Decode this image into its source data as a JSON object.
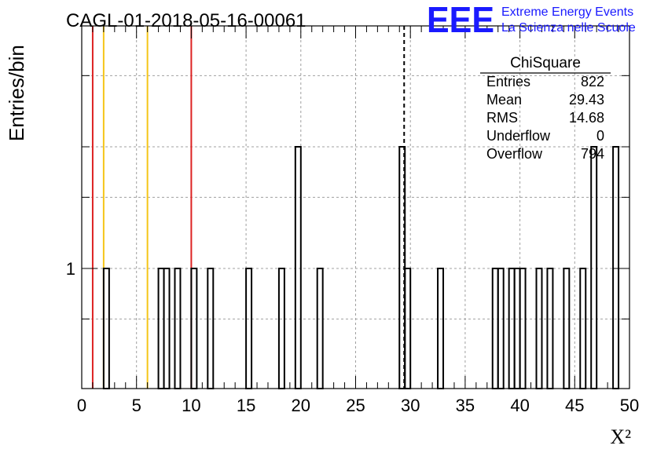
{
  "chart_data": {
    "type": "bar",
    "title": "CAGL-01-2018-05-16-00061",
    "xlabel": "X²",
    "ylabel": "Entries/bin",
    "xlim": [
      0,
      50
    ],
    "y_scale": "log",
    "y_visible_tick_label": "1",
    "grid": true,
    "x_ticks": [
      "0",
      "5",
      "10",
      "15",
      "20",
      "25",
      "30",
      "35",
      "40",
      "45",
      "50"
    ],
    "bin_width": 0.5,
    "bins": [
      {
        "x": 2.0,
        "count": 1
      },
      {
        "x": 7.0,
        "count": 1
      },
      {
        "x": 7.5,
        "count": 1
      },
      {
        "x": 8.5,
        "count": 1
      },
      {
        "x": 10.0,
        "count": 1
      },
      {
        "x": 11.5,
        "count": 1
      },
      {
        "x": 15.0,
        "count": 1
      },
      {
        "x": 18.0,
        "count": 1
      },
      {
        "x": 19.5,
        "count": 2
      },
      {
        "x": 21.5,
        "count": 1
      },
      {
        "x": 29.0,
        "count": 2
      },
      {
        "x": 29.5,
        "count": 1
      },
      {
        "x": 32.5,
        "count": 1
      },
      {
        "x": 37.5,
        "count": 1
      },
      {
        "x": 38.0,
        "count": 1
      },
      {
        "x": 39.0,
        "count": 1
      },
      {
        "x": 39.5,
        "count": 1
      },
      {
        "x": 40.0,
        "count": 1
      },
      {
        "x": 41.5,
        "count": 1
      },
      {
        "x": 42.5,
        "count": 1
      },
      {
        "x": 44.0,
        "count": 1
      },
      {
        "x": 45.5,
        "count": 1
      },
      {
        "x": 46.5,
        "count": 2
      },
      {
        "x": 48.5,
        "count": 2
      }
    ],
    "vertical_lines": [
      {
        "x": 1.0,
        "color": "#dd2222",
        "style": "solid"
      },
      {
        "x": 2.0,
        "color": "#f5c518",
        "style": "solid"
      },
      {
        "x": 6.0,
        "color": "#f5c518",
        "style": "solid"
      },
      {
        "x": 10.0,
        "color": "#dd2222",
        "style": "solid"
      },
      {
        "x": 29.43,
        "color": "#000000",
        "style": "dashed"
      }
    ],
    "stats_box": {
      "title": "ChiSquare",
      "rows": [
        {
          "label": "Entries",
          "value": "822"
        },
        {
          "label": "Mean",
          "value": "29.43"
        },
        {
          "label": "RMS",
          "value": "14.68"
        },
        {
          "label": "Underflow",
          "value": "0"
        },
        {
          "label": "Overflow",
          "value": "794"
        }
      ]
    }
  },
  "logo": {
    "mark": "EEE",
    "line1": "Extreme Energy Events",
    "line2": "La Scienza nelle Scuole",
    "color": "#1a1aff"
  }
}
